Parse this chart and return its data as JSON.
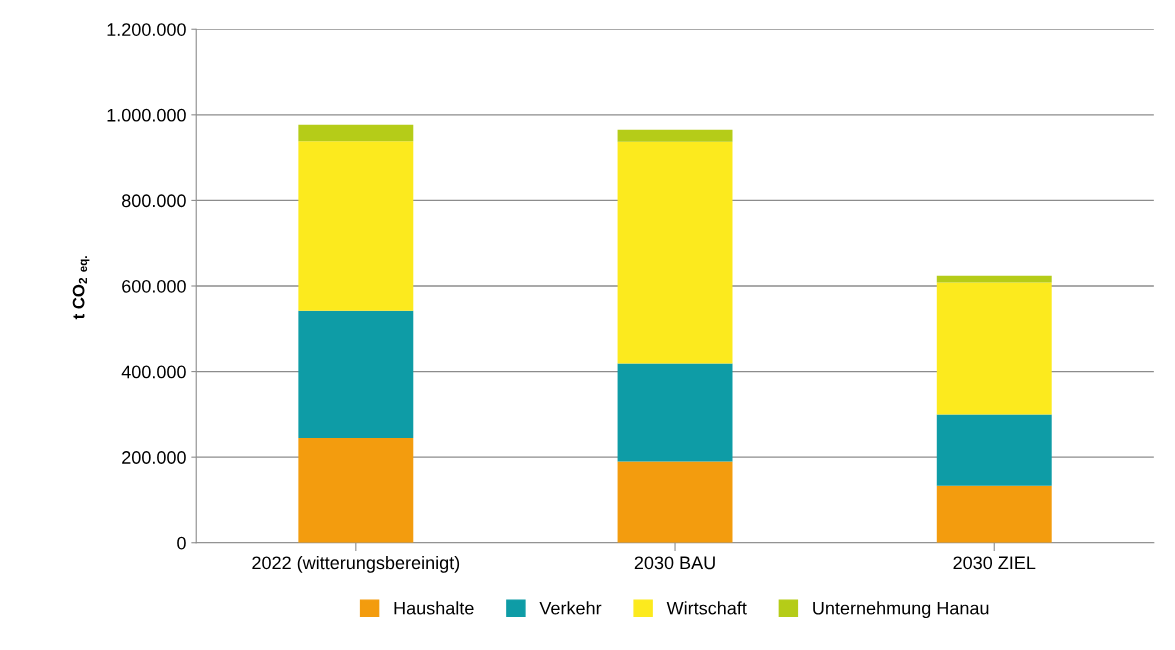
{
  "chart_data": {
    "type": "bar",
    "stacked": true,
    "ylabel": "t CO$_{2}$ $_{eq.}$",
    "categories": [
      "2022 (witterungsbereinigt)",
      "2030 BAU",
      "2030 ZIEL"
    ],
    "series": [
      {
        "name": "Haushalte",
        "color": "#f39c0e",
        "values": [
          245000,
          190000,
          133000
        ]
      },
      {
        "name": "Verkehr",
        "color": "#0e9ca6",
        "values": [
          297000,
          229000,
          167000
        ]
      },
      {
        "name": "Wirtschaft",
        "color": "#fcea1e",
        "values": [
          396000,
          518000,
          308000
        ]
      },
      {
        "name": "Unternehmung Hanau",
        "color": "#b5cc18",
        "values": [
          39000,
          28000,
          16000
        ]
      }
    ],
    "ylim": [
      0,
      1200000
    ],
    "yticks": [
      {
        "value": 0,
        "label": "0"
      },
      {
        "value": 200000,
        "label": "200.000"
      },
      {
        "value": 400000,
        "label": "400.000"
      },
      {
        "value": 600000,
        "label": "600.000"
      },
      {
        "value": 800000,
        "label": "800.000"
      },
      {
        "value": 1000000,
        "label": "1.000.000"
      },
      {
        "value": 1200000,
        "label": "1.200.000"
      }
    ],
    "grid": "y",
    "legend": "bottom"
  }
}
